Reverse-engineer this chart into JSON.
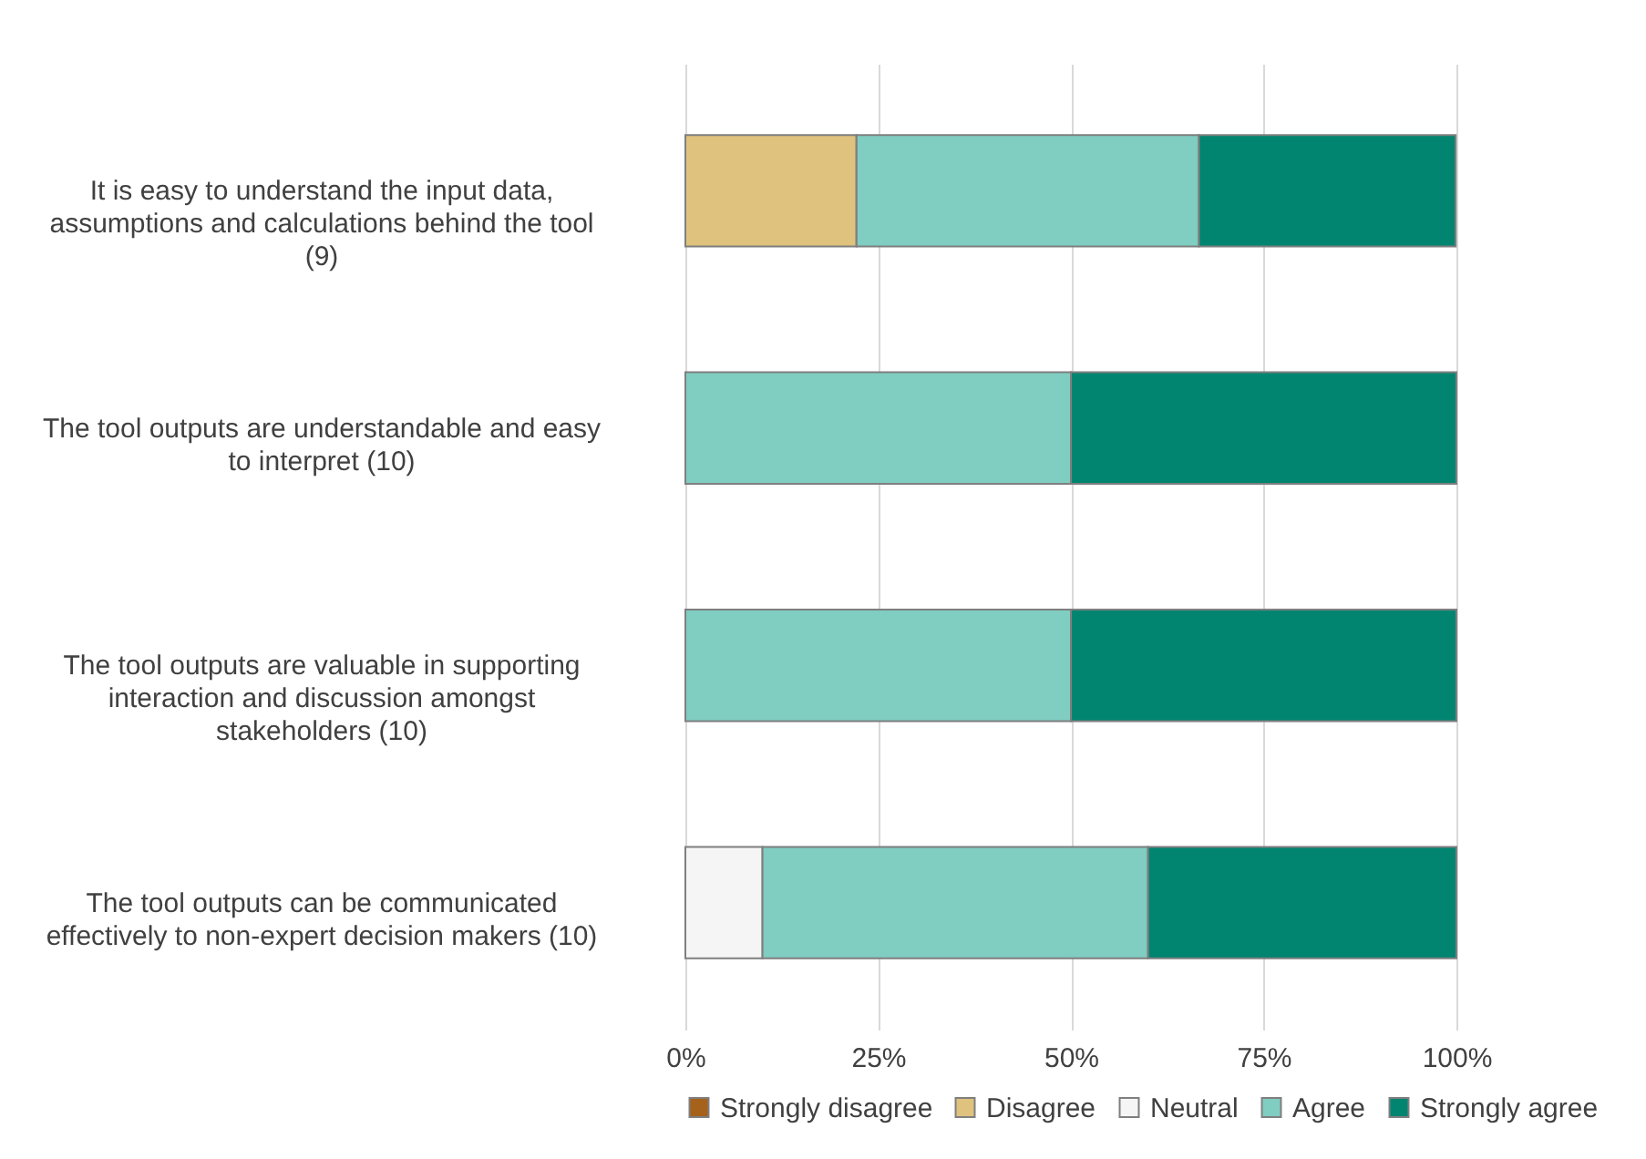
{
  "chart_data": {
    "type": "bar",
    "orientation": "horizontal",
    "stacked": true,
    "categories": [
      "It is easy to understand the input data, assumptions and calculations behind the tool (9)",
      "The tool outputs are understandable and easy to interpret (10)",
      "The tool outputs are valuable in supporting interaction and discussion amongst stakeholders (10)",
      "The tool outputs can be communicated effectively to non-expert decision makers (10)"
    ],
    "series": [
      {
        "name": "Strongly disagree",
        "color": "#a6611a",
        "values": [
          0,
          0,
          0,
          0
        ]
      },
      {
        "name": "Disagree",
        "color": "#dfc27d",
        "values": [
          22.2,
          0,
          0,
          0
        ]
      },
      {
        "name": "Neutral",
        "color": "#f5f5f5",
        "values": [
          0,
          0,
          0,
          10
        ]
      },
      {
        "name": "Agree",
        "color": "#80cdc1",
        "values": [
          44.4,
          50,
          50,
          50
        ]
      },
      {
        "name": "Strongly agree",
        "color": "#018571",
        "values": [
          33.3,
          50,
          50,
          40
        ]
      }
    ],
    "xlim": [
      0,
      100
    ],
    "xticks": [
      {
        "value": 0,
        "label": "0%"
      },
      {
        "value": 25,
        "label": "25%"
      },
      {
        "value": 50,
        "label": "50%"
      },
      {
        "value": 75,
        "label": "75%"
      },
      {
        "value": 100,
        "label": "100%"
      }
    ],
    "grid": "x",
    "legend": "bottom"
  }
}
